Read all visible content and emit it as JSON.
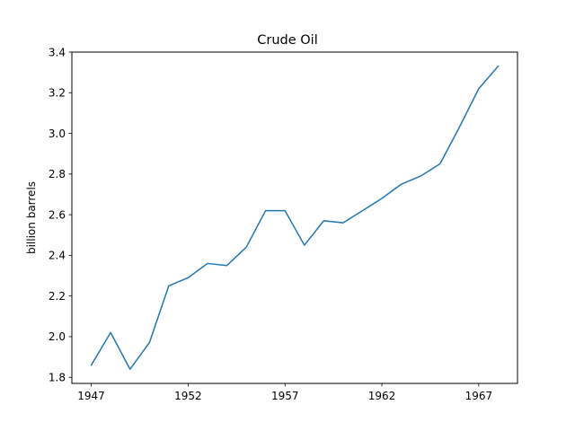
{
  "chart_data": {
    "type": "line",
    "title": "Crude Oil",
    "xlabel": "",
    "ylabel": "billion barrels",
    "xlim": [
      1946,
      1969
    ],
    "ylim": [
      1.77,
      3.4
    ],
    "xticks": [
      1947,
      1952,
      1957,
      1962,
      1967
    ],
    "yticks": [
      1.8,
      2.0,
      2.2,
      2.4,
      2.6,
      2.8,
      3.0,
      3.2,
      3.4
    ],
    "ytick_labels": [
      "1.8",
      "2.0",
      "2.2",
      "2.4",
      "2.6",
      "2.8",
      "3.0",
      "3.2",
      "3.4"
    ],
    "grid": false,
    "line_color": "#1f77b4",
    "series": [
      {
        "x": [
          1947,
          1948,
          1949,
          1950,
          1951,
          1952,
          1953,
          1954,
          1955,
          1956,
          1957,
          1958,
          1959,
          1960,
          1961,
          1962,
          1963,
          1964,
          1965,
          1966,
          1967,
          1968
        ],
        "values": [
          1.86,
          2.02,
          1.84,
          1.97,
          2.25,
          2.29,
          2.36,
          2.35,
          2.44,
          2.62,
          2.62,
          2.45,
          2.57,
          2.56,
          2.62,
          2.68,
          2.75,
          2.79,
          2.85,
          3.03,
          3.22,
          3.33
        ]
      }
    ]
  }
}
